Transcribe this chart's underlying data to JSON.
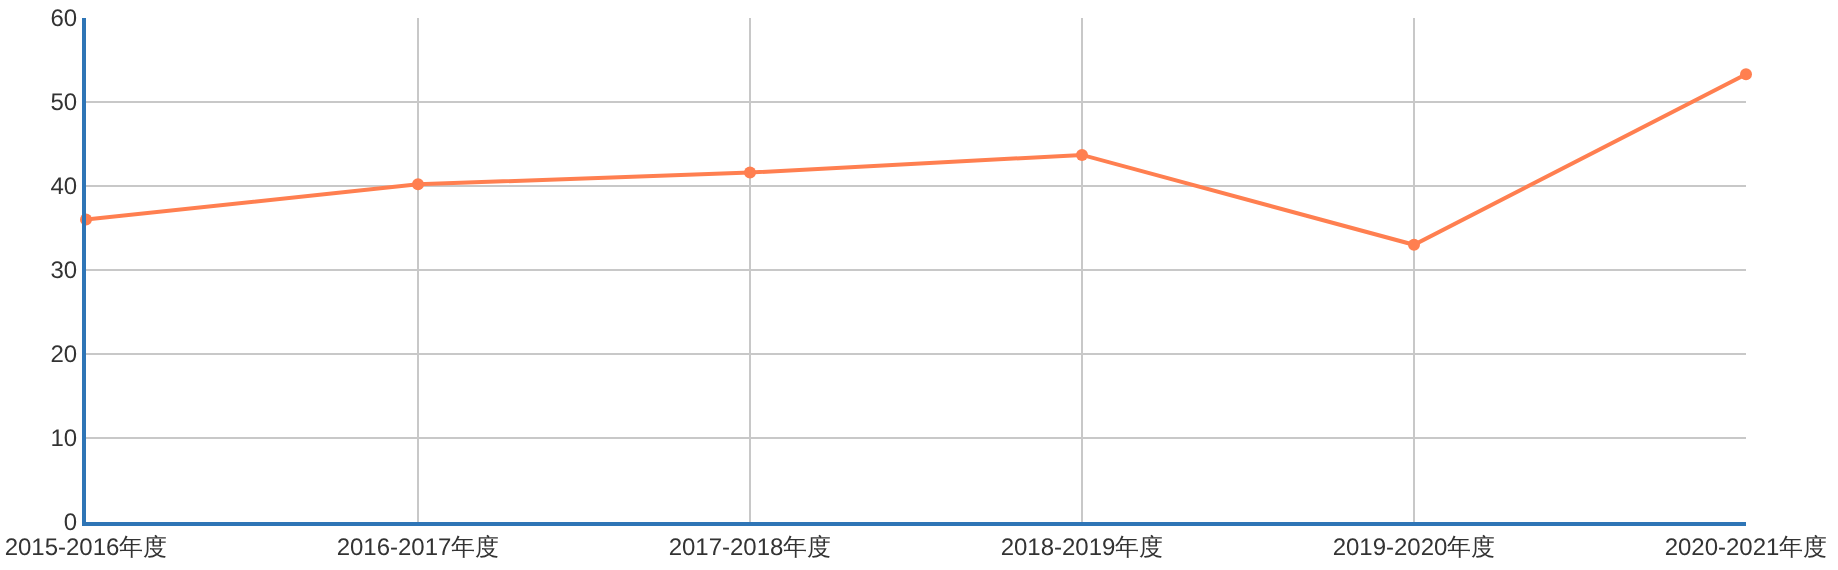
{
  "chart_data": {
    "type": "line",
    "categories": [
      "2015-2016年度",
      "2016-2017年度",
      "2017-2018年度",
      "2018-2019年度",
      "2019-2020年度",
      "2020-2021年度"
    ],
    "series": [
      {
        "color": "#ff7f50",
        "values": [
          36.0,
          40.2,
          41.6,
          43.7,
          33.0,
          53.3
        ]
      }
    ],
    "ylim": [
      0,
      60
    ],
    "yticks": [
      0,
      10,
      20,
      30,
      40,
      50,
      60
    ],
    "grid": true,
    "marker": "circle",
    "line_style": "solid"
  }
}
